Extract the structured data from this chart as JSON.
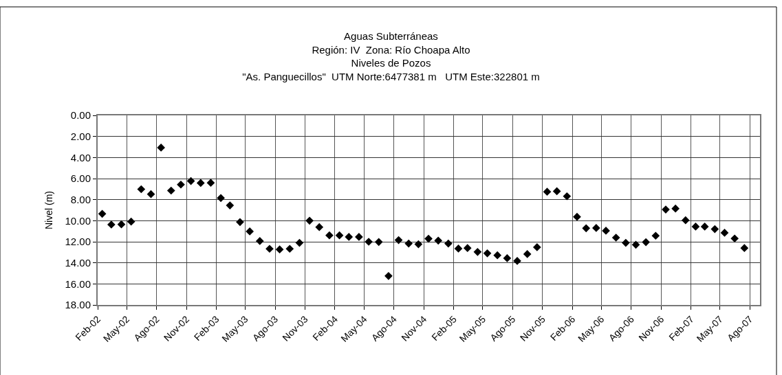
{
  "chart_data": {
    "type": "scatter",
    "title": "Aguas Subterráneas\nRegión: IV  Zona: Río Choapa Alto\nNiveles de Pozos\n\"As. Panguecillos\"  UTM Norte:6477381 m   UTM Este:322801 m",
    "ylabel": "Nivel (m)",
    "x": [
      "2002-02-15",
      "2002-03-15",
      "2002-04-15",
      "2002-05-15",
      "2002-06-15",
      "2002-07-15",
      "2002-08-15",
      "2002-09-15",
      "2002-10-15",
      "2002-11-15",
      "2002-12-15",
      "2003-01-15",
      "2003-02-15",
      "2003-03-15",
      "2003-04-15",
      "2003-05-15",
      "2003-06-15",
      "2003-07-15",
      "2003-08-15",
      "2003-09-15",
      "2003-10-15",
      "2003-11-15",
      "2003-12-15",
      "2004-01-15",
      "2004-02-15",
      "2004-03-15",
      "2004-04-15",
      "2004-05-15",
      "2004-06-15",
      "2004-07-15",
      "2004-08-15",
      "2004-09-15",
      "2004-10-15",
      "2004-11-15",
      "2004-12-15",
      "2005-01-15",
      "2005-02-15",
      "2005-03-15",
      "2005-04-15",
      "2005-05-15",
      "2005-06-15",
      "2005-07-15",
      "2005-08-15",
      "2005-09-15",
      "2005-10-15",
      "2005-11-15",
      "2005-12-15",
      "2006-01-15",
      "2006-02-15",
      "2006-03-15",
      "2006-04-15",
      "2006-05-15",
      "2006-06-15",
      "2006-07-15",
      "2006-08-15",
      "2006-09-15",
      "2006-10-15",
      "2006-11-15",
      "2006-12-15",
      "2007-01-15",
      "2007-02-15",
      "2007-03-15",
      "2007-04-15",
      "2007-05-15",
      "2007-06-15",
      "2007-07-15"
    ],
    "series": [
      {
        "color": "#000000",
        "values": [
          9.35,
          10.37,
          10.35,
          10.09,
          7.01,
          7.48,
          3.06,
          7.14,
          6.57,
          6.23,
          6.42,
          6.4,
          7.85,
          8.55,
          10.13,
          11.02,
          11.93,
          12.67,
          12.73,
          12.67,
          12.1,
          10.0,
          10.61,
          11.39,
          11.39,
          11.54,
          11.54,
          12.0,
          12.02,
          15.25,
          11.84,
          12.17,
          12.23,
          11.71,
          11.89,
          12.17,
          12.65,
          12.6,
          12.97,
          13.1,
          13.28,
          13.56,
          13.82,
          13.17,
          12.52,
          7.25,
          7.2,
          7.68,
          9.63,
          10.72,
          10.69,
          10.95,
          11.61,
          12.1,
          12.28,
          12.04,
          11.43,
          8.94,
          8.85,
          9.96,
          10.56,
          10.56,
          10.8,
          11.15,
          11.69,
          12.6
        ]
      }
    ],
    "xlim": [
      "2002-02-01",
      "2007-09-01"
    ],
    "xticks": [
      {
        "value": "2002-02-01",
        "label": "Feb-02"
      },
      {
        "value": "2002-05-01",
        "label": "May-02"
      },
      {
        "value": "2002-08-01",
        "label": "Ago-02"
      },
      {
        "value": "2002-11-01",
        "label": "Nov-02"
      },
      {
        "value": "2003-02-01",
        "label": "Feb-03"
      },
      {
        "value": "2003-05-01",
        "label": "May-03"
      },
      {
        "value": "2003-08-01",
        "label": "Ago-03"
      },
      {
        "value": "2003-11-01",
        "label": "Nov-03"
      },
      {
        "value": "2004-02-01",
        "label": "Feb-04"
      },
      {
        "value": "2004-05-01",
        "label": "May-04"
      },
      {
        "value": "2004-08-01",
        "label": "Ago-04"
      },
      {
        "value": "2004-11-01",
        "label": "Nov-04"
      },
      {
        "value": "2005-02-01",
        "label": "Feb-05"
      },
      {
        "value": "2005-05-01",
        "label": "May-05"
      },
      {
        "value": "2005-08-01",
        "label": "Ago-05"
      },
      {
        "value": "2005-11-01",
        "label": "Nov-05"
      },
      {
        "value": "2006-02-01",
        "label": "Feb-06"
      },
      {
        "value": "2006-05-01",
        "label": "May-06"
      },
      {
        "value": "2006-08-01",
        "label": "Ago-06"
      },
      {
        "value": "2006-11-01",
        "label": "Nov-06"
      },
      {
        "value": "2007-02-01",
        "label": "Feb-07"
      },
      {
        "value": "2007-05-01",
        "label": "May-07"
      },
      {
        "value": "2007-08-01",
        "label": "Ago-07"
      }
    ],
    "ylim": [
      18,
      0
    ],
    "yticks": [
      {
        "value": 0,
        "label": "0.00"
      },
      {
        "value": 2,
        "label": "2.00"
      },
      {
        "value": 4,
        "label": "4.00"
      },
      {
        "value": 6,
        "label": "6.00"
      },
      {
        "value": 8,
        "label": "8.00"
      },
      {
        "value": 10,
        "label": "10.00"
      },
      {
        "value": 12,
        "label": "12.00"
      },
      {
        "value": 14,
        "label": "14.00"
      },
      {
        "value": 16,
        "label": "16.00"
      },
      {
        "value": 18,
        "label": "18.00"
      }
    ],
    "grid": true,
    "marker": "diamond"
  }
}
